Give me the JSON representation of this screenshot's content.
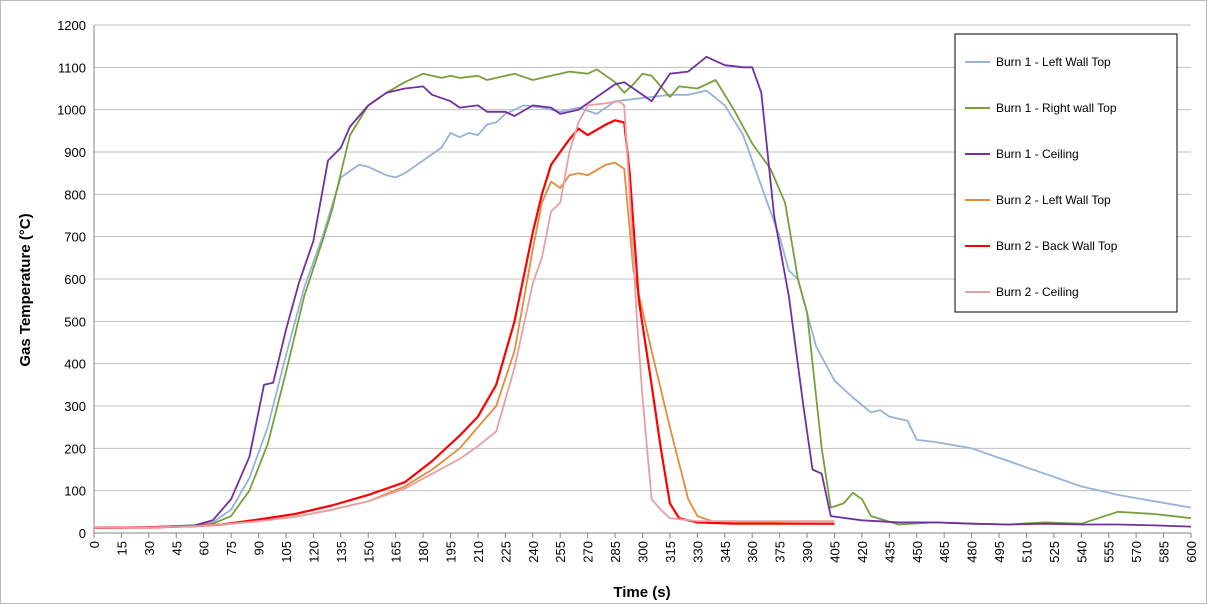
{
  "chart_data": {
    "type": "line",
    "title": "",
    "xlabel": "Time (s)",
    "ylabel": "Gas Temperature (°C)",
    "xlim": [
      0,
      600
    ],
    "ylim": [
      0,
      1200
    ],
    "x_ticks": [
      0,
      15,
      30,
      45,
      60,
      75,
      90,
      105,
      120,
      135,
      150,
      165,
      180,
      195,
      210,
      225,
      240,
      255,
      270,
      285,
      300,
      315,
      330,
      345,
      360,
      375,
      390,
      405,
      420,
      435,
      450,
      465,
      480,
      495,
      510,
      525,
      540,
      555,
      570,
      585,
      600
    ],
    "y_ticks": [
      0,
      100,
      200,
      300,
      400,
      500,
      600,
      700,
      800,
      900,
      1000,
      1100,
      1200
    ],
    "grid": "horizontal",
    "legend_position": "right",
    "series": [
      {
        "name": "Burn 1 - Left Wall Top",
        "color": "#95b3d7",
        "points": [
          [
            0,
            12
          ],
          [
            30,
            14
          ],
          [
            55,
            18
          ],
          [
            65,
            25
          ],
          [
            75,
            55
          ],
          [
            85,
            130
          ],
          [
            95,
            250
          ],
          [
            105,
            420
          ],
          [
            115,
            580
          ],
          [
            125,
            700
          ],
          [
            135,
            840
          ],
          [
            145,
            870
          ],
          [
            150,
            865
          ],
          [
            160,
            845
          ],
          [
            165,
            840
          ],
          [
            170,
            850
          ],
          [
            180,
            880
          ],
          [
            190,
            910
          ],
          [
            195,
            945
          ],
          [
            200,
            935
          ],
          [
            205,
            945
          ],
          [
            210,
            940
          ],
          [
            215,
            965
          ],
          [
            220,
            970
          ],
          [
            225,
            990
          ],
          [
            235,
            1010
          ],
          [
            245,
            1005
          ],
          [
            255,
            995
          ],
          [
            265,
            1005
          ],
          [
            275,
            990
          ],
          [
            285,
            1020
          ],
          [
            295,
            1025
          ],
          [
            305,
            1030
          ],
          [
            315,
            1035
          ],
          [
            325,
            1035
          ],
          [
            335,
            1045
          ],
          [
            345,
            1010
          ],
          [
            355,
            940
          ],
          [
            365,
            820
          ],
          [
            375,
            700
          ],
          [
            380,
            620
          ],
          [
            385,
            600
          ],
          [
            395,
            440
          ],
          [
            405,
            360
          ],
          [
            415,
            320
          ],
          [
            425,
            285
          ],
          [
            430,
            290
          ],
          [
            435,
            275
          ],
          [
            445,
            265
          ],
          [
            450,
            220
          ],
          [
            460,
            215
          ],
          [
            480,
            200
          ],
          [
            500,
            170
          ],
          [
            520,
            140
          ],
          [
            540,
            110
          ],
          [
            560,
            90
          ],
          [
            580,
            75
          ],
          [
            600,
            60
          ]
        ]
      },
      {
        "name": "Burn 1 - Right wall Top",
        "color": "#77a03c",
        "points": [
          [
            0,
            12
          ],
          [
            30,
            14
          ],
          [
            55,
            18
          ],
          [
            65,
            22
          ],
          [
            75,
            40
          ],
          [
            85,
            100
          ],
          [
            95,
            210
          ],
          [
            105,
            380
          ],
          [
            115,
            560
          ],
          [
            125,
            690
          ],
          [
            130,
            760
          ],
          [
            140,
            940
          ],
          [
            150,
            1010
          ],
          [
            160,
            1040
          ],
          [
            170,
            1065
          ],
          [
            180,
            1085
          ],
          [
            185,
            1080
          ],
          [
            190,
            1075
          ],
          [
            195,
            1080
          ],
          [
            200,
            1075
          ],
          [
            210,
            1080
          ],
          [
            215,
            1070
          ],
          [
            220,
            1075
          ],
          [
            230,
            1085
          ],
          [
            240,
            1070
          ],
          [
            250,
            1080
          ],
          [
            260,
            1090
          ],
          [
            270,
            1085
          ],
          [
            275,
            1095
          ],
          [
            285,
            1065
          ],
          [
            290,
            1040
          ],
          [
            295,
            1060
          ],
          [
            300,
            1085
          ],
          [
            305,
            1080
          ],
          [
            315,
            1030
          ],
          [
            320,
            1055
          ],
          [
            330,
            1050
          ],
          [
            340,
            1070
          ],
          [
            350,
            1000
          ],
          [
            360,
            920
          ],
          [
            370,
            860
          ],
          [
            378,
            780
          ],
          [
            385,
            600
          ],
          [
            390,
            520
          ],
          [
            398,
            200
          ],
          [
            403,
            60
          ],
          [
            410,
            70
          ],
          [
            415,
            95
          ],
          [
            420,
            80
          ],
          [
            425,
            40
          ],
          [
            440,
            20
          ],
          [
            460,
            25
          ],
          [
            480,
            22
          ],
          [
            500,
            20
          ],
          [
            520,
            25
          ],
          [
            540,
            22
          ],
          [
            560,
            50
          ],
          [
            580,
            45
          ],
          [
            600,
            35
          ]
        ]
      },
      {
        "name": "Burn 1 - Ceiling",
        "color": "#7030a0",
        "points": [
          [
            0,
            12
          ],
          [
            30,
            14
          ],
          [
            55,
            18
          ],
          [
            65,
            30
          ],
          [
            75,
            80
          ],
          [
            85,
            180
          ],
          [
            93,
            350
          ],
          [
            98,
            355
          ],
          [
            105,
            480
          ],
          [
            112,
            590
          ],
          [
            120,
            690
          ],
          [
            128,
            880
          ],
          [
            135,
            910
          ],
          [
            140,
            960
          ],
          [
            150,
            1010
          ],
          [
            160,
            1040
          ],
          [
            170,
            1050
          ],
          [
            180,
            1055
          ],
          [
            185,
            1035
          ],
          [
            195,
            1020
          ],
          [
            200,
            1005
          ],
          [
            210,
            1010
          ],
          [
            215,
            995
          ],
          [
            225,
            995
          ],
          [
            230,
            985
          ],
          [
            240,
            1010
          ],
          [
            250,
            1005
          ],
          [
            255,
            990
          ],
          [
            265,
            1000
          ],
          [
            275,
            1030
          ],
          [
            285,
            1060
          ],
          [
            290,
            1065
          ],
          [
            300,
            1035
          ],
          [
            305,
            1020
          ],
          [
            315,
            1085
          ],
          [
            325,
            1090
          ],
          [
            335,
            1125
          ],
          [
            345,
            1105
          ],
          [
            355,
            1100
          ],
          [
            360,
            1100
          ],
          [
            365,
            1040
          ],
          [
            372,
            750
          ],
          [
            380,
            560
          ],
          [
            388,
            300
          ],
          [
            393,
            150
          ],
          [
            398,
            140
          ],
          [
            403,
            40
          ],
          [
            420,
            30
          ],
          [
            440,
            25
          ],
          [
            460,
            25
          ],
          [
            480,
            22
          ],
          [
            500,
            20
          ],
          [
            520,
            22
          ],
          [
            540,
            20
          ],
          [
            560,
            20
          ],
          [
            580,
            18
          ],
          [
            600,
            15
          ]
        ]
      },
      {
        "name": "Burn 2 - Left Wall Top",
        "color": "#e38c3a",
        "points": [
          [
            0,
            12
          ],
          [
            30,
            13
          ],
          [
            55,
            16
          ],
          [
            70,
            20
          ],
          [
            90,
            28
          ],
          [
            110,
            38
          ],
          [
            130,
            55
          ],
          [
            150,
            75
          ],
          [
            170,
            110
          ],
          [
            185,
            150
          ],
          [
            200,
            200
          ],
          [
            210,
            250
          ],
          [
            220,
            300
          ],
          [
            230,
            430
          ],
          [
            240,
            670
          ],
          [
            245,
            780
          ],
          [
            250,
            830
          ],
          [
            255,
            815
          ],
          [
            260,
            845
          ],
          [
            265,
            850
          ],
          [
            270,
            845
          ],
          [
            280,
            870
          ],
          [
            285,
            875
          ],
          [
            290,
            860
          ],
          [
            295,
            620
          ],
          [
            305,
            430
          ],
          [
            315,
            250
          ],
          [
            325,
            80
          ],
          [
            330,
            40
          ],
          [
            340,
            25
          ],
          [
            360,
            25
          ],
          [
            380,
            23
          ],
          [
            400,
            22
          ],
          [
            405,
            22
          ]
        ]
      },
      {
        "name": "Burn 2 - Back Wall Top",
        "color": "#ff0000",
        "points": [
          [
            0,
            12
          ],
          [
            30,
            13
          ],
          [
            55,
            16
          ],
          [
            70,
            20
          ],
          [
            90,
            32
          ],
          [
            110,
            45
          ],
          [
            130,
            65
          ],
          [
            150,
            90
          ],
          [
            170,
            120
          ],
          [
            185,
            170
          ],
          [
            200,
            230
          ],
          [
            210,
            275
          ],
          [
            220,
            350
          ],
          [
            230,
            500
          ],
          [
            240,
            710
          ],
          [
            245,
            800
          ],
          [
            250,
            870
          ],
          [
            255,
            900
          ],
          [
            260,
            930
          ],
          [
            265,
            955
          ],
          [
            270,
            940
          ],
          [
            280,
            965
          ],
          [
            285,
            975
          ],
          [
            290,
            970
          ],
          [
            293,
            850
          ],
          [
            298,
            550
          ],
          [
            305,
            350
          ],
          [
            310,
            200
          ],
          [
            315,
            70
          ],
          [
            320,
            35
          ],
          [
            330,
            25
          ],
          [
            350,
            22
          ],
          [
            380,
            22
          ],
          [
            405,
            22
          ]
        ]
      },
      {
        "name": "Burn 2 - Ceiling",
        "color": "#e6a0a4",
        "points": [
          [
            0,
            12
          ],
          [
            30,
            13
          ],
          [
            55,
            16
          ],
          [
            70,
            20
          ],
          [
            90,
            28
          ],
          [
            110,
            38
          ],
          [
            130,
            55
          ],
          [
            150,
            75
          ],
          [
            170,
            105
          ],
          [
            185,
            140
          ],
          [
            200,
            175
          ],
          [
            210,
            205
          ],
          [
            220,
            240
          ],
          [
            230,
            390
          ],
          [
            240,
            590
          ],
          [
            245,
            650
          ],
          [
            250,
            760
          ],
          [
            255,
            780
          ],
          [
            260,
            900
          ],
          [
            265,
            970
          ],
          [
            270,
            1010
          ],
          [
            280,
            1015
          ],
          [
            287,
            1020
          ],
          [
            290,
            1010
          ],
          [
            293,
            800
          ],
          [
            297,
            500
          ],
          [
            300,
            320
          ],
          [
            305,
            80
          ],
          [
            310,
            55
          ],
          [
            315,
            35
          ],
          [
            330,
            28
          ],
          [
            350,
            28
          ],
          [
            380,
            28
          ],
          [
            405,
            28
          ]
        ]
      }
    ]
  }
}
